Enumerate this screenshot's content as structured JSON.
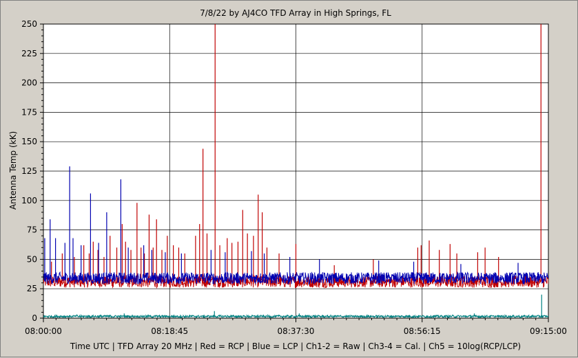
{
  "chart_data": {
    "type": "line",
    "title": "7/8/22  by  AJ4CO TFD Array  in  High Springs, FL",
    "ylabel": "Antenna Temp (kK)",
    "xlabel": "Time UTC | TFD Array 20 MHz | Red = RCP | Blue = LCP | Ch1-2 = Raw | Ch3-4 = Cal. | Ch5 = 10log(RCP/LCP)",
    "ylim": [
      0,
      250
    ],
    "yticks": [
      "0",
      "25",
      "50",
      "75",
      "100",
      "125",
      "150",
      "175",
      "200",
      "225",
      "250"
    ],
    "x_range_minutes": [
      0,
      75
    ],
    "xticks": [
      {
        "label": "08:00:00",
        "minutes": 0
      },
      {
        "label": "08:18:45",
        "minutes": 18.75
      },
      {
        "label": "08:37:30",
        "minutes": 37.5
      },
      {
        "label": "08:56:15",
        "minutes": 56.25
      },
      {
        "label": "09:15:00",
        "minutes": 75
      }
    ],
    "grid": true,
    "series": [
      {
        "color": "#c00000",
        "baseline": 31,
        "noise": 5,
        "spikes": [
          [
            1.2,
            48
          ],
          [
            2.8,
            55
          ],
          [
            4.6,
            52
          ],
          [
            6.0,
            62
          ],
          [
            6.8,
            55
          ],
          [
            7.4,
            65
          ],
          [
            8.1,
            58
          ],
          [
            9.0,
            52
          ],
          [
            9.9,
            70
          ],
          [
            10.9,
            60
          ],
          [
            11.7,
            80
          ],
          [
            12.2,
            65
          ],
          [
            13.0,
            58
          ],
          [
            13.9,
            98
          ],
          [
            14.5,
            60
          ],
          [
            15.0,
            55
          ],
          [
            15.7,
            88
          ],
          [
            16.3,
            60
          ],
          [
            16.8,
            84
          ],
          [
            17.6,
            58
          ],
          [
            18.4,
            70
          ],
          [
            19.3,
            62
          ],
          [
            20.1,
            60
          ],
          [
            21.0,
            55
          ],
          [
            22.6,
            70
          ],
          [
            23.2,
            80
          ],
          [
            23.7,
            144
          ],
          [
            24.3,
            72
          ],
          [
            25.5,
            250
          ],
          [
            26.2,
            62
          ],
          [
            27.3,
            68
          ],
          [
            28.0,
            64
          ],
          [
            28.9,
            65
          ],
          [
            29.6,
            92
          ],
          [
            30.3,
            72
          ],
          [
            31.2,
            70
          ],
          [
            31.9,
            105
          ],
          [
            32.5,
            90
          ],
          [
            33.2,
            60
          ],
          [
            35.0,
            55
          ],
          [
            37.5,
            63
          ],
          [
            43.2,
            45
          ],
          [
            49.0,
            50
          ],
          [
            55.6,
            60
          ],
          [
            56.1,
            62
          ],
          [
            57.3,
            66
          ],
          [
            58.8,
            58
          ],
          [
            60.4,
            63
          ],
          [
            61.4,
            55
          ],
          [
            64.5,
            56
          ],
          [
            65.6,
            60
          ],
          [
            67.6,
            52
          ],
          [
            73.9,
            250
          ]
        ]
      },
      {
        "color": "#0000b0",
        "baseline": 34,
        "noise": 5,
        "spikes": [
          [
            0.2,
            68
          ],
          [
            1.0,
            84
          ],
          [
            1.8,
            68
          ],
          [
            3.2,
            64
          ],
          [
            3.9,
            129
          ],
          [
            4.4,
            68
          ],
          [
            5.6,
            62
          ],
          [
            7.0,
            106
          ],
          [
            8.2,
            64
          ],
          [
            9.4,
            90
          ],
          [
            11.5,
            118
          ],
          [
            12.6,
            60
          ],
          [
            14.9,
            62
          ],
          [
            16.1,
            58
          ],
          [
            18.1,
            56
          ],
          [
            20.5,
            55
          ],
          [
            24.9,
            58
          ],
          [
            27.0,
            56
          ],
          [
            30.9,
            57
          ],
          [
            32.8,
            55
          ],
          [
            36.6,
            52
          ],
          [
            41.0,
            50
          ],
          [
            49.8,
            49
          ],
          [
            55.0,
            48
          ],
          [
            62.0,
            46
          ],
          [
            70.5,
            47
          ]
        ]
      },
      {
        "color": "#008080",
        "baseline": 1.5,
        "noise": 1,
        "spikes": [
          [
            25.4,
            6
          ],
          [
            12.0,
            4
          ],
          [
            38.0,
            4
          ],
          [
            64.0,
            4
          ],
          [
            74.0,
            20
          ]
        ]
      }
    ]
  }
}
